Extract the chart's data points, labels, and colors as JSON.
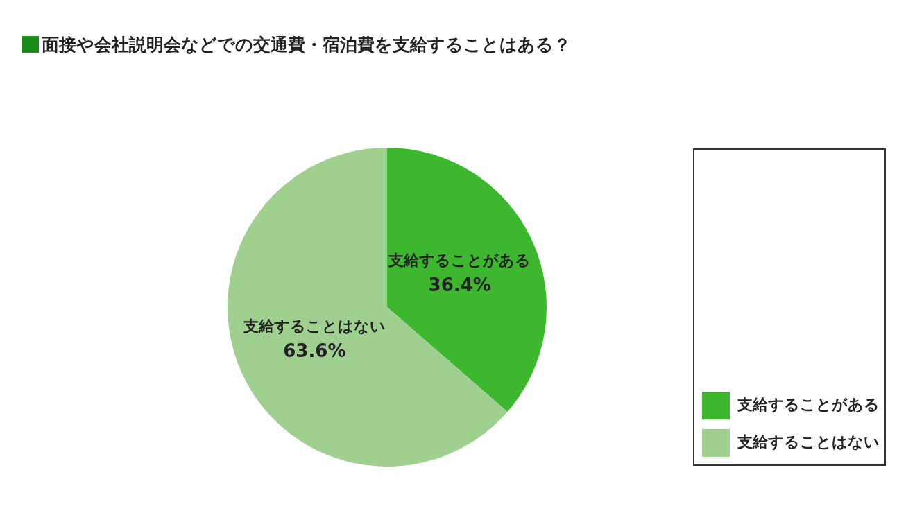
{
  "chart_data": {
    "type": "pie",
    "title": "面接や会社説明会などでの交通費・宿泊費を支給することはある？",
    "categories": [
      "支給することがある",
      "支給することはない"
    ],
    "values": [
      36.4,
      63.6
    ],
    "colors": [
      "#3cb72e",
      "#a0d090"
    ],
    "value_labels": [
      "36.4%",
      "63.6%"
    ],
    "legend": "bottom right"
  }
}
